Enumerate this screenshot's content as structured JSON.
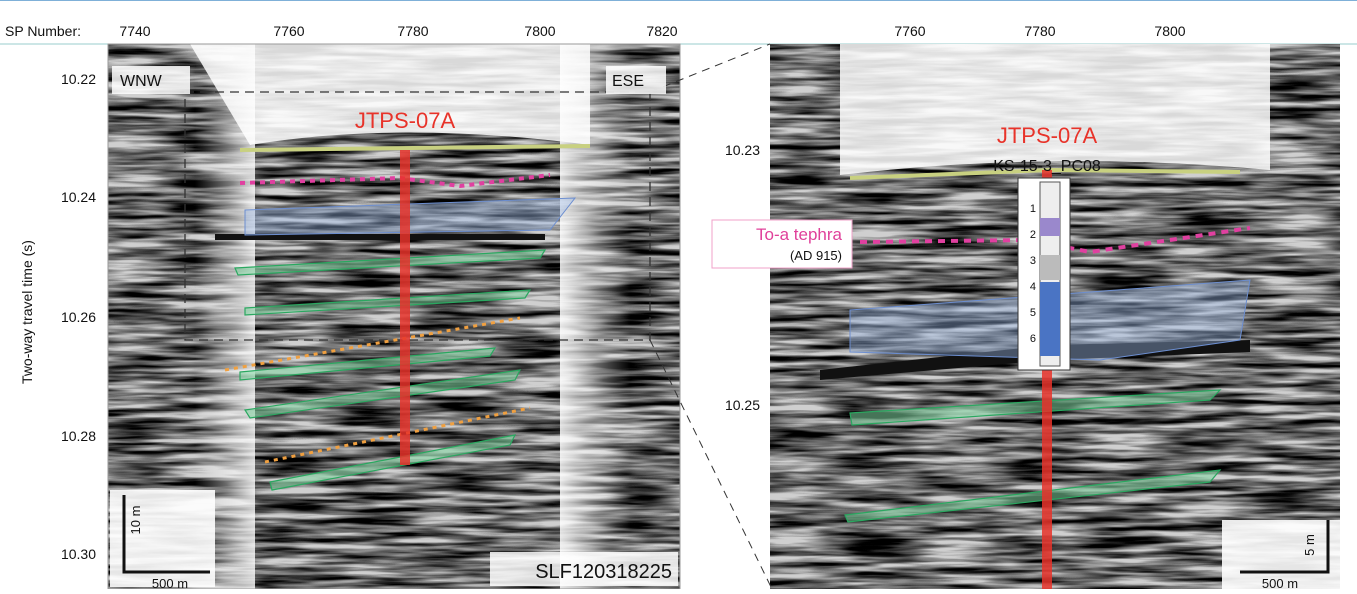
{
  "left_panel": {
    "x_axis_label": "SP Number:",
    "x_ticks": [
      "7740",
      "7760",
      "7780",
      "7800",
      "7820"
    ],
    "y_axis_label": "Two-way travel time (s)",
    "y_ticks": [
      "10.22",
      "10.24",
      "10.26",
      "10.28",
      "10.30"
    ],
    "west_label": "WNW",
    "east_label": "ESE",
    "site_label": "JTPS-07A",
    "line_id": "SLF120318225",
    "scale_vertical": "10 m",
    "scale_horizontal": "500 m"
  },
  "right_panel": {
    "x_ticks": [
      "7760",
      "7780",
      "7800"
    ],
    "y_ticks": [
      "10.23",
      "10.25"
    ],
    "site_label": "JTPS-07A",
    "core_label": "KS-15-3_PC08",
    "tephra_label": "To-a tephra",
    "tephra_age": "(AD 915)",
    "core_units": [
      "1",
      "2",
      "3",
      "4",
      "5",
      "6"
    ],
    "scale_vertical": "5 m",
    "scale_horizontal": "500 m"
  }
}
